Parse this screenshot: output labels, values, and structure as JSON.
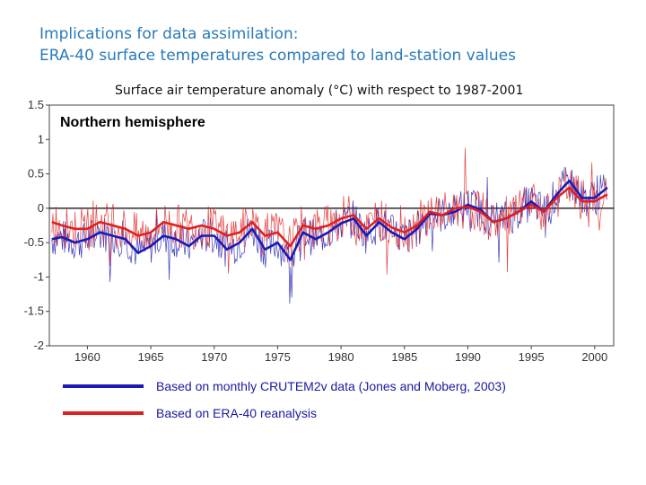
{
  "header": {
    "title_line1": "Implications for data assimilation:",
    "title_line2": "ERA-40 surface temperatures compared to land-station values"
  },
  "chart_data": {
    "type": "line",
    "title": "Surface air temperature anomaly (°C) with respect to 1987-2001",
    "panel_label": "Northern hemisphere",
    "xlabel": "",
    "ylabel": "",
    "xlim": [
      1957,
      2001.5
    ],
    "ylim": [
      -2,
      1.5
    ],
    "x_ticks": [
      1960,
      1965,
      1970,
      1975,
      1980,
      1985,
      1990,
      1995,
      2000
    ],
    "y_ticks": [
      1.5,
      1,
      0.5,
      0,
      -0.5,
      -1,
      -1.5,
      -2
    ],
    "grid": false,
    "zero_line": true,
    "legend_position": "bottom",
    "series": [
      {
        "name": "Based on monthly CRUTEM2v data (Jones and Moberg, 2003)",
        "color": "#1a1ab4",
        "smoothed": {
          "x": [
            1957.2,
            1958,
            1959,
            1960,
            1961,
            1962,
            1963,
            1964,
            1965,
            1966,
            1967,
            1968,
            1969,
            1970,
            1971,
            1972,
            1973,
            1974,
            1975,
            1976,
            1977,
            1978,
            1979,
            1980,
            1981,
            1982,
            1983,
            1984,
            1985,
            1986,
            1987,
            1988,
            1989,
            1990,
            1991,
            1992,
            1993,
            1994,
            1995,
            1996,
            1997,
            1998,
            1999,
            2000,
            2001
          ],
          "y": [
            -0.45,
            -0.42,
            -0.5,
            -0.45,
            -0.35,
            -0.4,
            -0.45,
            -0.65,
            -0.55,
            -0.4,
            -0.45,
            -0.55,
            -0.4,
            -0.4,
            -0.6,
            -0.5,
            -0.3,
            -0.6,
            -0.5,
            -0.75,
            -0.35,
            -0.45,
            -0.35,
            -0.22,
            -0.15,
            -0.4,
            -0.2,
            -0.35,
            -0.45,
            -0.3,
            -0.08,
            -0.1,
            -0.05,
            0.05,
            -0.02,
            -0.2,
            -0.15,
            -0.05,
            0.1,
            -0.05,
            0.2,
            0.4,
            0.15,
            0.15,
            0.3
          ]
        }
      },
      {
        "name": "Based on ERA-40 reanalysis",
        "color": "#e02020",
        "smoothed": {
          "x": [
            1957.2,
            1958,
            1959,
            1960,
            1961,
            1962,
            1963,
            1964,
            1965,
            1966,
            1967,
            1968,
            1969,
            1970,
            1971,
            1972,
            1973,
            1974,
            1975,
            1976,
            1977,
            1978,
            1979,
            1980,
            1981,
            1982,
            1983,
            1984,
            1985,
            1986,
            1987,
            1988,
            1989,
            1990,
            1991,
            1992,
            1993,
            1994,
            1995,
            1996,
            1997,
            1998,
            1999,
            2000,
            2001
          ],
          "y": [
            -0.2,
            -0.25,
            -0.3,
            -0.3,
            -0.2,
            -0.25,
            -0.3,
            -0.4,
            -0.35,
            -0.2,
            -0.25,
            -0.3,
            -0.25,
            -0.3,
            -0.4,
            -0.35,
            -0.2,
            -0.4,
            -0.35,
            -0.55,
            -0.25,
            -0.3,
            -0.25,
            -0.15,
            -0.1,
            -0.3,
            -0.15,
            -0.28,
            -0.35,
            -0.25,
            -0.05,
            -0.1,
            0.0,
            0.02,
            -0.05,
            -0.2,
            -0.15,
            -0.05,
            0.05,
            -0.05,
            0.15,
            0.3,
            0.1,
            0.1,
            0.2
          ]
        }
      }
    ]
  }
}
